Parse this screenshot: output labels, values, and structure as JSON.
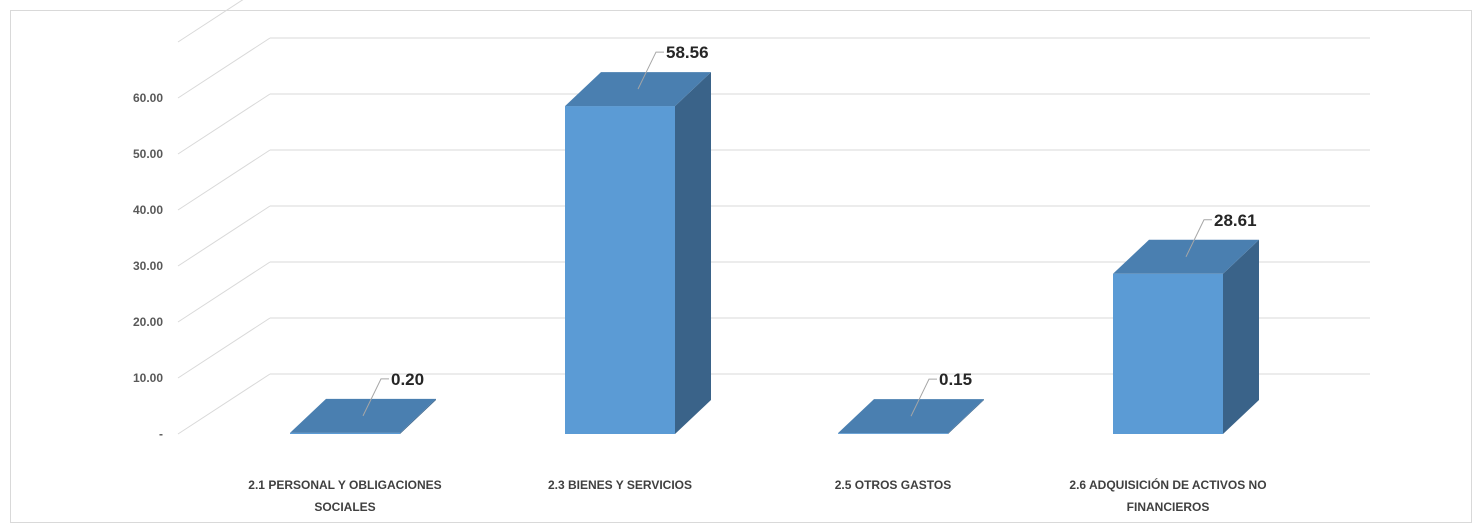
{
  "chart_data": {
    "type": "bar",
    "style": "3d-column",
    "categories": [
      [
        "2.1 PERSONAL Y OBLIGACIONES",
        "SOCIALES"
      ],
      [
        "2.3 BIENES Y SERVICIOS"
      ],
      [
        "2.5 OTROS GASTOS"
      ],
      [
        "2.6 ADQUISICIÓN DE ACTIVOS NO",
        "FINANCIEROS"
      ]
    ],
    "values": [
      0.2,
      58.56,
      0.15,
      28.61
    ],
    "data_labels": [
      "0.20",
      "58.56",
      "0.15",
      "28.61"
    ],
    "y_ticks": [
      "-",
      "10.00",
      "20.00",
      "30.00",
      "40.00",
      "50.00",
      "60.00"
    ],
    "ylim": [
      0,
      70
    ],
    "grid": true,
    "legend": "none",
    "title": "",
    "xlabel": "",
    "ylabel": "",
    "colors": {
      "bar_front": "#5b9bd5",
      "bar_top": "#4a7fb0",
      "bar_side": "#3a6389",
      "gridline": "#d9d9d9",
      "leader_line": "#a6a6a6"
    }
  }
}
